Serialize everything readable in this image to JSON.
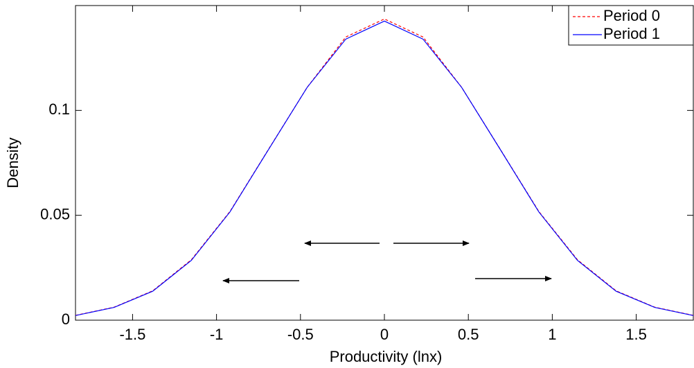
{
  "chart_data": {
    "type": "line",
    "x_label": "Productivity (lnx)",
    "y_label": "Density",
    "x": [
      -1.84,
      -1.61,
      -1.38,
      -1.15,
      -0.92,
      -0.69,
      -0.46,
      -0.23,
      0,
      0.23,
      0.46,
      0.69,
      0.92,
      1.15,
      1.38,
      1.61,
      1.84
    ],
    "series": [
      {
        "name": "Period 0",
        "color": "#ff0000",
        "dashed": true,
        "values": [
          0.0023,
          0.0062,
          0.014,
          0.0288,
          0.0518,
          0.0815,
          0.111,
          0.135,
          0.1436,
          0.135,
          0.111,
          0.0815,
          0.0518,
          0.0288,
          0.014,
          0.0062,
          0.0023
        ]
      },
      {
        "name": "Period 1",
        "color": "#0000ff",
        "dashed": false,
        "values": [
          0.0022,
          0.0061,
          0.0138,
          0.0285,
          0.0516,
          0.0814,
          0.111,
          0.134,
          0.1426,
          0.134,
          0.111,
          0.0814,
          0.0516,
          0.0285,
          0.0138,
          0.0061,
          0.0022
        ]
      }
    ],
    "xlim": [
      -1.84,
      1.84
    ],
    "ylim": [
      0,
      0.15
    ],
    "xticks": [
      -1.5,
      -1,
      -0.5,
      0,
      0.5,
      1,
      1.5
    ],
    "yticks": [
      0,
      0.05,
      0.1
    ],
    "grid": false,
    "legend": "northeast"
  }
}
